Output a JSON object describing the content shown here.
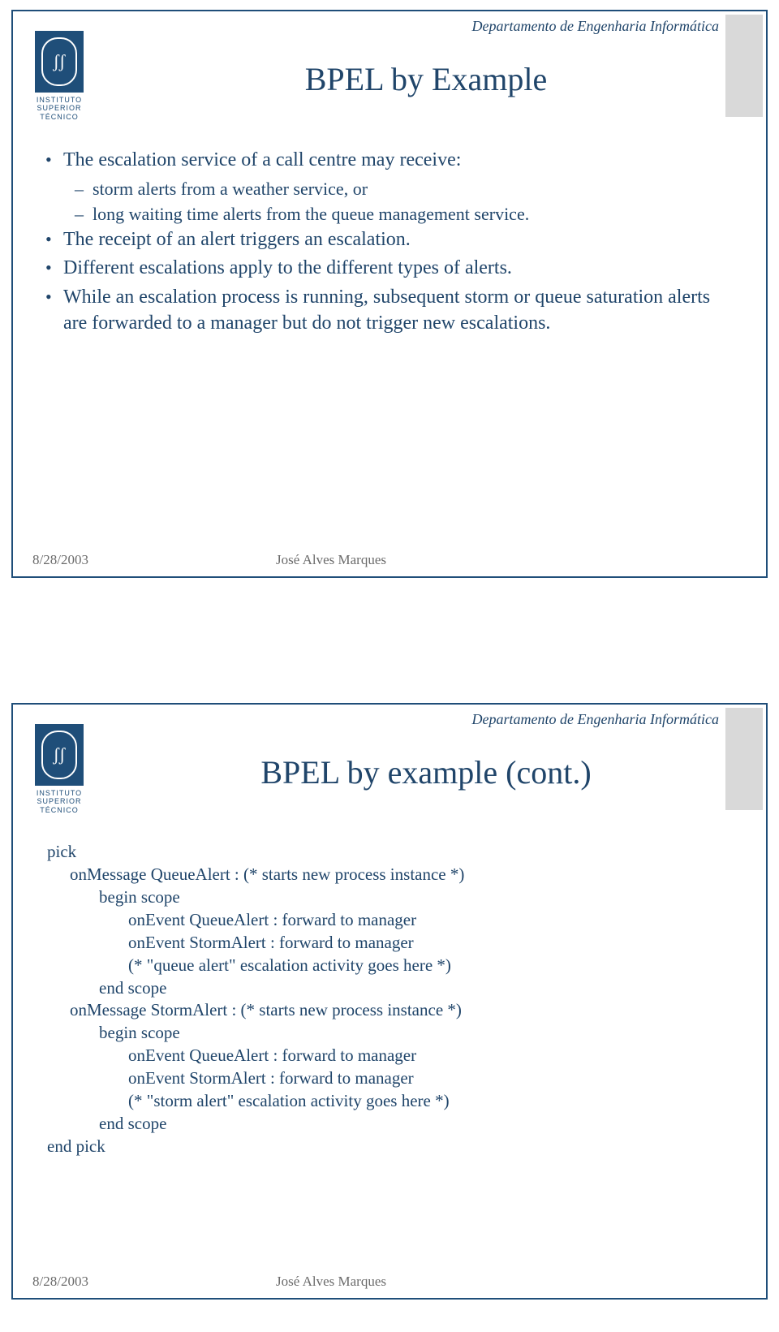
{
  "dept": "Departamento de Engenharia Informática",
  "institute": {
    "line1": "INSTITUTO",
    "line2": "SUPERIOR",
    "line3": "TÉCNICO"
  },
  "colors": {
    "primary": "#1f4e79",
    "text": "#20456a",
    "accent": "#d9d9d9",
    "footer": "#6b6b6b",
    "bg": "#ffffff"
  },
  "slide1": {
    "title": "BPEL by Example",
    "bullets": [
      {
        "level": 1,
        "text": "The escalation service of a call centre may receive:"
      },
      {
        "level": 2,
        "text": "storm alerts from a weather service, or"
      },
      {
        "level": 2,
        "text": "long waiting time alerts from the queue management service."
      },
      {
        "level": 1,
        "text": "The receipt of an alert triggers an escalation."
      },
      {
        "level": 1,
        "text": "Different escalations apply to the different types of alerts."
      },
      {
        "level": 1,
        "text": "While an escalation process is running, subsequent storm or queue saturation alerts are forwarded to a manager but do not trigger new escalations."
      }
    ]
  },
  "slide2": {
    "title": "BPEL by example (cont.)",
    "code": [
      {
        "indent": 0,
        "text": "pick"
      },
      {
        "indent": 1,
        "text": "onMessage QueueAlert : (* starts new process instance *)"
      },
      {
        "indent": 2,
        "text": "begin scope"
      },
      {
        "indent": 3,
        "text": "onEvent QueueAlert : forward to manager"
      },
      {
        "indent": 3,
        "text": "onEvent StormAlert : forward to manager"
      },
      {
        "indent": 3,
        "text": "(* \"queue alert\" escalation activity goes here *)"
      },
      {
        "indent": 2,
        "text": "end scope"
      },
      {
        "indent": 1,
        "text": "onMessage StormAlert : (* starts new process instance *)"
      },
      {
        "indent": 2,
        "text": "begin scope"
      },
      {
        "indent": 3,
        "text": "onEvent QueueAlert : forward to manager"
      },
      {
        "indent": 3,
        "text": "onEvent StormAlert : forward to manager"
      },
      {
        "indent": 3,
        "text": "(* \"storm alert\" escalation activity goes here *)"
      },
      {
        "indent": 2,
        "text": "end scope"
      },
      {
        "indent": 0,
        "text": "end pick"
      }
    ]
  },
  "footer": {
    "date": "8/28/2003",
    "author": "José Alves Marques"
  }
}
